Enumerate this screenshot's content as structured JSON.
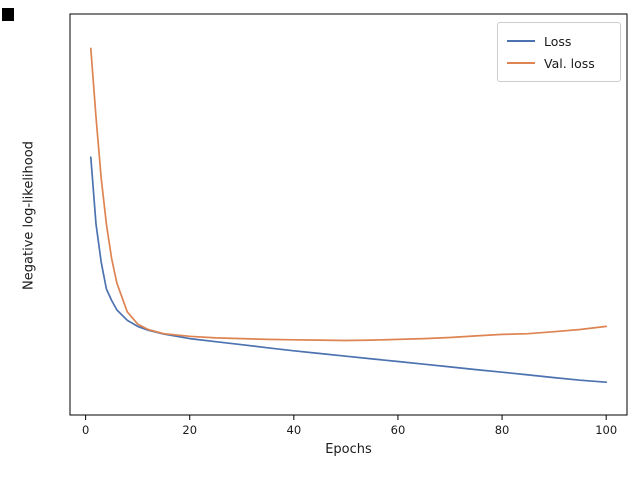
{
  "chart_data": {
    "type": "line",
    "title": "",
    "xlabel": "Epochs",
    "ylabel": "Negative log-likelihood",
    "x_ticks": [
      0,
      20,
      40,
      60,
      80,
      100
    ],
    "xlim": [
      -3,
      104
    ],
    "ylim": [
      0,
      1.05
    ],
    "y_tick_labels_visible": false,
    "grid": false,
    "legend_position": "upper right",
    "x": [
      1,
      2,
      3,
      4,
      5,
      6,
      8,
      10,
      12,
      15,
      20,
      25,
      30,
      35,
      40,
      45,
      50,
      55,
      60,
      65,
      70,
      75,
      80,
      85,
      90,
      95,
      100
    ],
    "series": [
      {
        "name": "Loss",
        "color": "#4c72b0",
        "values": [
          0.675,
          0.5,
          0.4,
          0.33,
          0.3,
          0.275,
          0.248,
          0.232,
          0.222,
          0.212,
          0.2,
          0.192,
          0.184,
          0.176,
          0.168,
          0.161,
          0.154,
          0.147,
          0.14,
          0.133,
          0.126,
          0.119,
          0.112,
          0.105,
          0.098,
          0.091,
          0.086
        ]
      },
      {
        "name": "Val. loss",
        "color": "#dd8452",
        "values": [
          0.96,
          0.78,
          0.62,
          0.5,
          0.41,
          0.345,
          0.27,
          0.238,
          0.224,
          0.213,
          0.206,
          0.202,
          0.2,
          0.198,
          0.197,
          0.196,
          0.195,
          0.196,
          0.198,
          0.2,
          0.203,
          0.207,
          0.211,
          0.213,
          0.218,
          0.224,
          0.232
        ]
      }
    ]
  },
  "colors": {
    "axis": "#000000",
    "tick_label": "#1a1a1a",
    "legend_border": "#cccccc",
    "background": "#ffffff"
  }
}
